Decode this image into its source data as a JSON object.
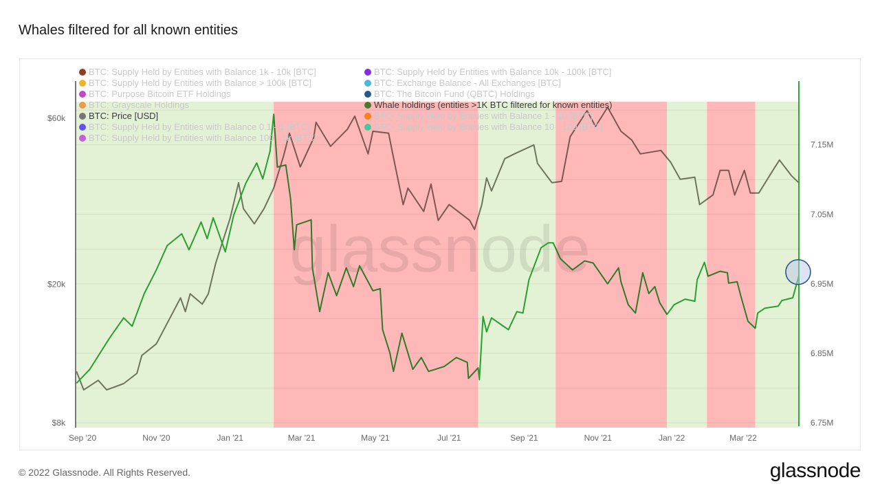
{
  "title": "Whales filtered for all known entities",
  "footer": "© 2022 Glassnode. All Rights Reserved.",
  "brand": "glassnode",
  "watermark": "glassnode",
  "legend": {
    "col1": [
      {
        "label": "BTC: Supply Held by Entities with Balance 1k - 10k [BTC]",
        "color": "#8c3f22",
        "active": false
      },
      {
        "label": "BTC: Supply Held by Entities with Balance > 100k [BTC]",
        "color": "#f0b323",
        "active": false
      },
      {
        "label": "BTC: Purpose Bitcoin ETF Holdings",
        "color": "#c844c8",
        "active": false
      },
      {
        "label": "BTC: Grayscale Holdings",
        "color": "#ee9a48",
        "active": false
      },
      {
        "label": "BTC: Price [USD]",
        "color": "#777777",
        "active": true
      },
      {
        "label": "BTC: Supply Held by Entities with Balance 0.1 - 1 [BTC]",
        "color": "#6650f0",
        "active": false
      },
      {
        "label": "BTC: Supply Held by Entities with Balance 100 - 1k [BTC]",
        "color": "#c460e0",
        "active": false
      }
    ],
    "col2": [
      {
        "label": "BTC: Supply Held by Entities with Balance 10k - 100k [BTC]",
        "color": "#8a2be2",
        "active": false
      },
      {
        "label": "BTC: Exchange Balance - All Exchanges [BTC]",
        "color": "#4bb8e0",
        "active": false
      },
      {
        "label": "BTC: The Bitcoin Fund (QBTC) Holdings",
        "color": "#235a8a",
        "active": false
      },
      {
        "label": "Whale holdings (entities >1K BTC filtered for known entities)",
        "color": "#4a7a30",
        "active": true
      },
      {
        "label": "BTC: Supply Held by Entities with Balance 1 - 10 [BTC]",
        "color": "#f5821f",
        "active": false
      },
      {
        "label": "BTC: Supply Held by Entities with Balance 10 - 100 [BTC]",
        "color": "#4cc6a0",
        "active": false
      }
    ]
  },
  "chart_data": {
    "type": "line",
    "x_range": [
      "2020-08-26",
      "2022-04-16"
    ],
    "x_ticks": [
      {
        "date": "2020-09-01",
        "label": "Sep '20"
      },
      {
        "date": "2020-11-01",
        "label": "Nov '20"
      },
      {
        "date": "2021-01-01",
        "label": "Jan '21"
      },
      {
        "date": "2021-03-01",
        "label": "Mar '21"
      },
      {
        "date": "2021-05-01",
        "label": "May '21"
      },
      {
        "date": "2021-07-01",
        "label": "Jul '21"
      },
      {
        "date": "2021-09-01",
        "label": "Sep '21"
      },
      {
        "date": "2021-11-01",
        "label": "Nov '21"
      },
      {
        "date": "2022-01-01",
        "label": "Jan '22"
      },
      {
        "date": "2022-03-01",
        "label": "Mar '22"
      }
    ],
    "y_left": {
      "scale": "log",
      "range": [
        8000,
        67000
      ],
      "ticks": [
        {
          "v": 8000,
          "label": "$8k"
        },
        {
          "v": 20000,
          "label": "$20k"
        },
        {
          "v": 60000,
          "label": "$60k"
        }
      ]
    },
    "y_right": {
      "scale": "linear",
      "range": [
        6.75,
        7.212
      ],
      "ticks": [
        {
          "v": 6.75,
          "label": "6.75M"
        },
        {
          "v": 6.85,
          "label": "6.85M"
        },
        {
          "v": 6.95,
          "label": "6.95M"
        },
        {
          "v": 7.05,
          "label": "7.05M"
        },
        {
          "v": 7.15,
          "label": "7.15M"
        }
      ],
      "grid_step": 0.05
    },
    "grid": true,
    "bands": [
      {
        "start": "2020-08-27",
        "end": "2021-02-06",
        "state": "increase",
        "color": "#e3f1d4"
      },
      {
        "start": "2021-02-06",
        "end": "2021-07-25",
        "state": "decrease",
        "color": "#ffb8b8"
      },
      {
        "start": "2021-07-25",
        "end": "2021-09-27",
        "state": "increase",
        "color": "#e3f1d4"
      },
      {
        "start": "2021-09-27",
        "end": "2021-12-28",
        "state": "decrease",
        "color": "#ffb8b8"
      },
      {
        "start": "2021-12-28",
        "end": "2022-01-30",
        "state": "increase",
        "color": "#e3f1d4"
      },
      {
        "start": "2022-01-30",
        "end": "2022-03-11",
        "state": "decrease",
        "color": "#ffb8b8"
      },
      {
        "start": "2022-03-11",
        "end": "2022-04-16",
        "state": "increase",
        "color": "#e3f1d4"
      }
    ],
    "series": [
      {
        "name": "BTC: Price [USD]",
        "axis": "left",
        "color": "#7a7a70",
        "points": [
          [
            "2020-08-27",
            11250
          ],
          [
            "2020-09-02",
            9950
          ],
          [
            "2020-09-14",
            10600
          ],
          [
            "2020-09-21",
            9950
          ],
          [
            "2020-10-05",
            10370
          ],
          [
            "2020-10-16",
            11100
          ],
          [
            "2020-10-20",
            12490
          ],
          [
            "2020-11-01",
            13490
          ],
          [
            "2020-11-10",
            15460
          ],
          [
            "2020-11-21",
            18290
          ],
          [
            "2020-11-25",
            16700
          ],
          [
            "2020-11-29",
            18790
          ],
          [
            "2020-12-09",
            17550
          ],
          [
            "2020-12-14",
            18790
          ],
          [
            "2020-12-20",
            22950
          ],
          [
            "2021-01-01",
            30970
          ],
          [
            "2021-01-08",
            39190
          ],
          [
            "2021-01-12",
            33000
          ],
          [
            "2021-01-21",
            29860
          ],
          [
            "2021-01-29",
            33000
          ],
          [
            "2021-02-06",
            37820
          ],
          [
            "2021-02-14",
            46610
          ],
          [
            "2021-02-19",
            54390
          ],
          [
            "2021-02-28",
            43530
          ],
          [
            "2021-03-11",
            52690
          ],
          [
            "2021-03-13",
            58480
          ],
          [
            "2021-03-25",
            49880
          ],
          [
            "2021-04-08",
            55880
          ],
          [
            "2021-04-14",
            60900
          ],
          [
            "2021-04-25",
            47460
          ],
          [
            "2021-04-29",
            55120
          ],
          [
            "2021-05-12",
            54390
          ],
          [
            "2021-05-15",
            48110
          ],
          [
            "2021-05-24",
            33910
          ],
          [
            "2021-05-28",
            37820
          ],
          [
            "2021-06-10",
            32400
          ],
          [
            "2021-06-16",
            38860
          ],
          [
            "2021-06-22",
            30550
          ],
          [
            "2021-07-01",
            33910
          ],
          [
            "2021-07-18",
            30550
          ],
          [
            "2021-07-22",
            28780
          ],
          [
            "2021-07-28",
            33910
          ],
          [
            "2021-08-01",
            40470
          ],
          [
            "2021-08-05",
            37130
          ],
          [
            "2021-08-16",
            45960
          ],
          [
            "2021-08-24",
            47460
          ],
          [
            "2021-09-09",
            50340
          ],
          [
            "2021-09-12",
            44540
          ],
          [
            "2021-09-24",
            39190
          ],
          [
            "2021-10-02",
            39580
          ],
          [
            "2021-10-09",
            53180
          ],
          [
            "2021-10-23",
            63150
          ],
          [
            "2021-10-30",
            56910
          ],
          [
            "2021-11-09",
            64610
          ],
          [
            "2021-11-20",
            55120
          ],
          [
            "2021-11-29",
            51970
          ],
          [
            "2021-12-06",
            47460
          ],
          [
            "2021-12-23",
            48540
          ],
          [
            "2021-12-31",
            44940
          ],
          [
            "2022-01-08",
            40100
          ],
          [
            "2022-01-20",
            40660
          ],
          [
            "2022-01-24",
            33910
          ],
          [
            "2022-02-04",
            36140
          ],
          [
            "2022-02-10",
            42550
          ],
          [
            "2022-02-17",
            42550
          ],
          [
            "2022-02-22",
            36140
          ],
          [
            "2022-03-02",
            42550
          ],
          [
            "2022-03-07",
            36620
          ],
          [
            "2022-03-14",
            36620
          ],
          [
            "2022-03-27",
            43330
          ],
          [
            "2022-03-31",
            45540
          ],
          [
            "2022-04-10",
            41030
          ],
          [
            "2022-04-16",
            39190
          ]
        ]
      },
      {
        "name": "Whale holdings (entities >1K BTC filtered for known entities)",
        "axis": "right",
        "unit": "M BTC",
        "color": "#2ea83a",
        "points": [
          [
            "2020-08-27",
            6.807
          ],
          [
            "2020-09-07",
            6.827
          ],
          [
            "2020-09-23",
            6.871
          ],
          [
            "2020-10-05",
            6.901
          ],
          [
            "2020-10-12",
            6.889
          ],
          [
            "2020-10-22",
            6.936
          ],
          [
            "2020-11-01",
            6.97
          ],
          [
            "2020-11-10",
            7.005
          ],
          [
            "2020-11-22",
            7.022
          ],
          [
            "2020-11-28",
            6.999
          ],
          [
            "2020-12-08",
            7.039
          ],
          [
            "2020-12-13",
            7.015
          ],
          [
            "2020-12-18",
            7.045
          ],
          [
            "2020-12-28",
            6.996
          ],
          [
            "2021-01-04",
            7.049
          ],
          [
            "2021-01-14",
            7.095
          ],
          [
            "2021-01-23",
            7.124
          ],
          [
            "2021-01-28",
            7.101
          ],
          [
            "2021-02-03",
            7.141
          ],
          [
            "2021-02-06",
            7.194
          ],
          [
            "2021-02-09",
            7.118
          ],
          [
            "2021-02-16",
            7.121
          ],
          [
            "2021-02-20",
            7.072
          ],
          [
            "2021-02-23",
            6.999
          ],
          [
            "2021-02-25",
            7.035
          ],
          [
            "2021-03-09",
            7.042
          ],
          [
            "2021-03-10",
            6.973
          ],
          [
            "2021-03-16",
            6.91
          ],
          [
            "2021-03-23",
            6.966
          ],
          [
            "2021-03-30",
            6.933
          ],
          [
            "2021-04-07",
            6.973
          ],
          [
            "2021-04-13",
            6.946
          ],
          [
            "2021-04-18",
            6.976
          ],
          [
            "2021-04-29",
            6.94
          ],
          [
            "2021-05-05",
            6.943
          ],
          [
            "2021-05-07",
            6.884
          ],
          [
            "2021-05-13",
            6.851
          ],
          [
            "2021-05-16",
            6.824
          ],
          [
            "2021-05-23",
            6.879
          ],
          [
            "2021-06-01",
            6.827
          ],
          [
            "2021-06-08",
            6.844
          ],
          [
            "2021-06-14",
            6.824
          ],
          [
            "2021-06-27",
            6.831
          ],
          [
            "2021-07-07",
            6.844
          ],
          [
            "2021-07-16",
            6.837
          ],
          [
            "2021-07-17",
            6.814
          ],
          [
            "2021-07-25",
            6.829
          ],
          [
            "2021-07-26",
            6.812
          ],
          [
            "2021-07-29",
            6.903
          ],
          [
            "2021-08-01",
            6.881
          ],
          [
            "2021-08-05",
            6.901
          ],
          [
            "2021-08-19",
            6.884
          ],
          [
            "2021-08-26",
            6.91
          ],
          [
            "2021-08-31",
            6.908
          ],
          [
            "2021-09-05",
            6.956
          ],
          [
            "2021-09-15",
            7.002
          ],
          [
            "2021-09-21",
            7.009
          ],
          [
            "2021-09-25",
            7.009
          ],
          [
            "2021-10-01",
            6.986
          ],
          [
            "2021-10-11",
            6.97
          ],
          [
            "2021-10-21",
            6.983
          ],
          [
            "2021-10-28",
            6.98
          ],
          [
            "2021-11-09",
            6.95
          ],
          [
            "2021-11-18",
            6.973
          ],
          [
            "2021-11-20",
            6.953
          ],
          [
            "2021-11-26",
            6.92
          ],
          [
            "2021-12-02",
            6.908
          ],
          [
            "2021-12-08",
            6.966
          ],
          [
            "2021-12-13",
            6.936
          ],
          [
            "2021-12-18",
            6.946
          ],
          [
            "2021-12-22",
            6.923
          ],
          [
            "2021-12-28",
            6.906
          ],
          [
            "2022-01-03",
            6.92
          ],
          [
            "2022-01-12",
            6.928
          ],
          [
            "2022-01-20",
            6.925
          ],
          [
            "2022-01-22",
            6.956
          ],
          [
            "2022-01-28",
            6.981
          ],
          [
            "2022-01-31",
            6.961
          ],
          [
            "2022-02-10",
            6.968
          ],
          [
            "2022-02-16",
            6.966
          ],
          [
            "2022-02-17",
            6.951
          ],
          [
            "2022-02-24",
            6.953
          ],
          [
            "2022-02-27",
            6.933
          ],
          [
            "2022-03-05",
            6.896
          ],
          [
            "2022-03-11",
            6.886
          ],
          [
            "2022-03-13",
            6.908
          ],
          [
            "2022-03-19",
            6.915
          ],
          [
            "2022-03-30",
            6.918
          ],
          [
            "2022-04-02",
            6.926
          ],
          [
            "2022-04-11",
            6.93
          ],
          [
            "2022-04-16",
            6.961
          ]
        ]
      }
    ],
    "highlight": {
      "series": "Whale holdings (entities >1K BTC filtered for known entities)",
      "date": "2022-04-16"
    }
  }
}
